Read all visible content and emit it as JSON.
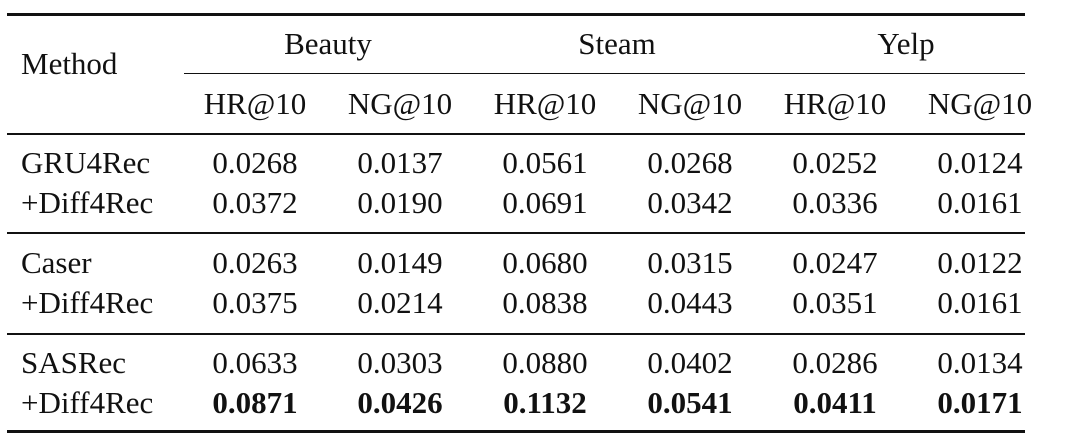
{
  "table": {
    "header": {
      "method": "Method",
      "datasets": [
        "Beauty",
        "Steam",
        "Yelp"
      ],
      "metrics": [
        "HR@10",
        "NG@10",
        "HR@10",
        "NG@10",
        "HR@10",
        "NG@10"
      ]
    },
    "groups": [
      {
        "base": {
          "name": "GRU4Rec",
          "values": [
            "0.0268",
            "0.0137",
            "0.0561",
            "0.0268",
            "0.0252",
            "0.0124"
          ]
        },
        "plus": {
          "name": "+Diff4Rec",
          "values": [
            "0.0372",
            "0.0190",
            "0.0691",
            "0.0342",
            "0.0336",
            "0.0161"
          ],
          "bold": false
        }
      },
      {
        "base": {
          "name": "Caser",
          "values": [
            "0.0263",
            "0.0149",
            "0.0680",
            "0.0315",
            "0.0247",
            "0.0122"
          ]
        },
        "plus": {
          "name": "+Diff4Rec",
          "values": [
            "0.0375",
            "0.0214",
            "0.0838",
            "0.0443",
            "0.0351",
            "0.0161"
          ],
          "bold": false
        }
      },
      {
        "base": {
          "name": "SASRec",
          "values": [
            "0.0633",
            "0.0303",
            "0.0880",
            "0.0402",
            "0.0286",
            "0.0134"
          ]
        },
        "plus": {
          "name": "+Diff4Rec",
          "values": [
            "0.0871",
            "0.0426",
            "0.1132",
            "0.0541",
            "0.0411",
            "0.0171"
          ],
          "bold": true
        }
      }
    ]
  }
}
